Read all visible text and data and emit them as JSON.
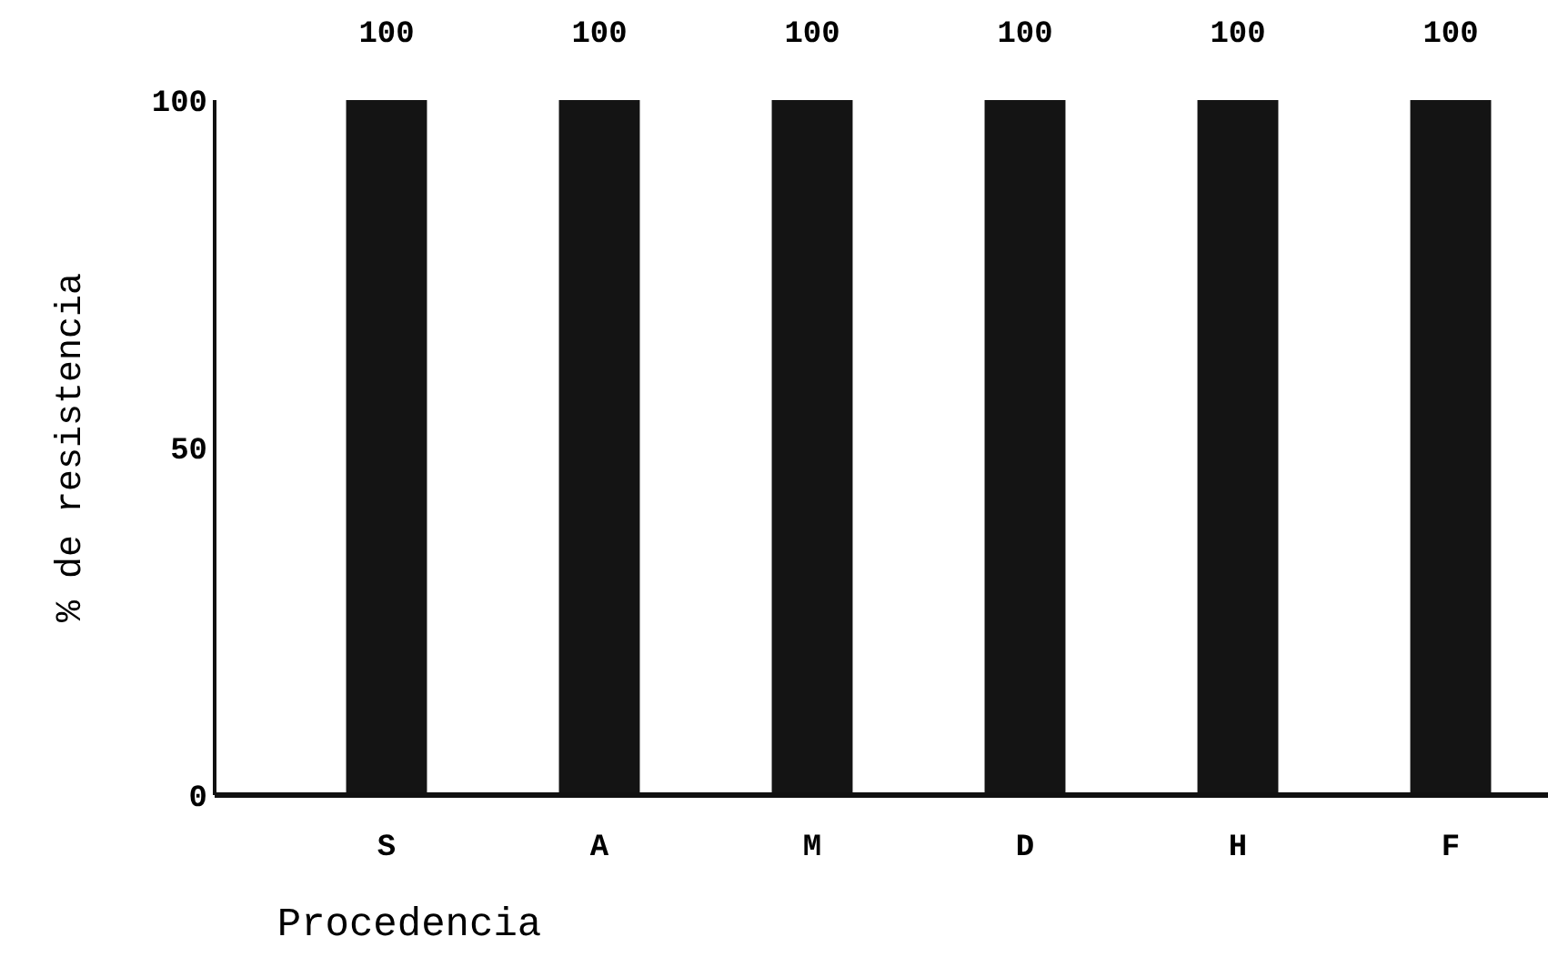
{
  "chart_data": {
    "type": "bar",
    "xlabel": "Procedencia",
    "ylabel": "% de resistencia",
    "categories": [
      "S",
      "A",
      "M",
      "D",
      "H",
      "F"
    ],
    "values": [
      100,
      100,
      100,
      100,
      100,
      100
    ],
    "color": "#141414",
    "ylim": [
      0,
      100
    ],
    "yticks": [
      0,
      50,
      100
    ],
    "data_labels": true,
    "grid": false
  }
}
